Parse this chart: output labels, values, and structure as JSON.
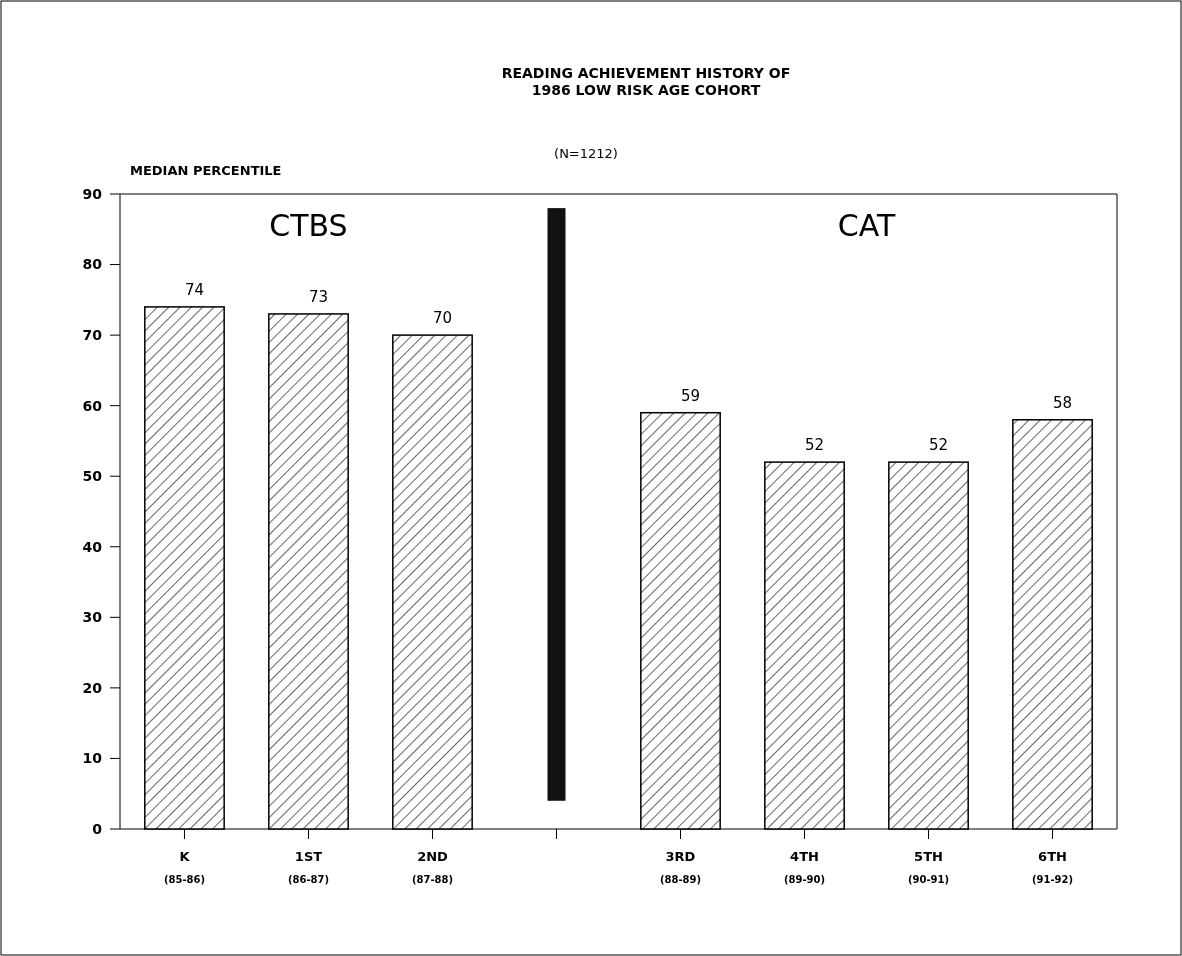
{
  "chart_data": {
    "type": "bar",
    "title": "READING ACHIEVEMENT HISTORY OF\n1986 LOW RISK AGE COHORT",
    "subtitle": "(N=1212)",
    "ylabel": "MEDIAN PERCENTILE",
    "categories": [
      "K\n(85-86)",
      "1ST\n(86-87)",
      "2ND\n(87-88)",
      null,
      "3RD\n(88-89)",
      "4TH\n(89-90)",
      "5TH\n(90-91)",
      "6TH\n(91-92)"
    ],
    "values": [
      74,
      73,
      70,
      null,
      59,
      52,
      52,
      58
    ],
    "color": "#000000",
    "data_labels": true,
    "ylim": [
      0,
      90
    ],
    "yticks": [
      0,
      10,
      20,
      30,
      40,
      50,
      60,
      70,
      80,
      90
    ],
    "grid": false,
    "annotations": [
      "CTBS",
      "CAT"
    ]
  }
}
